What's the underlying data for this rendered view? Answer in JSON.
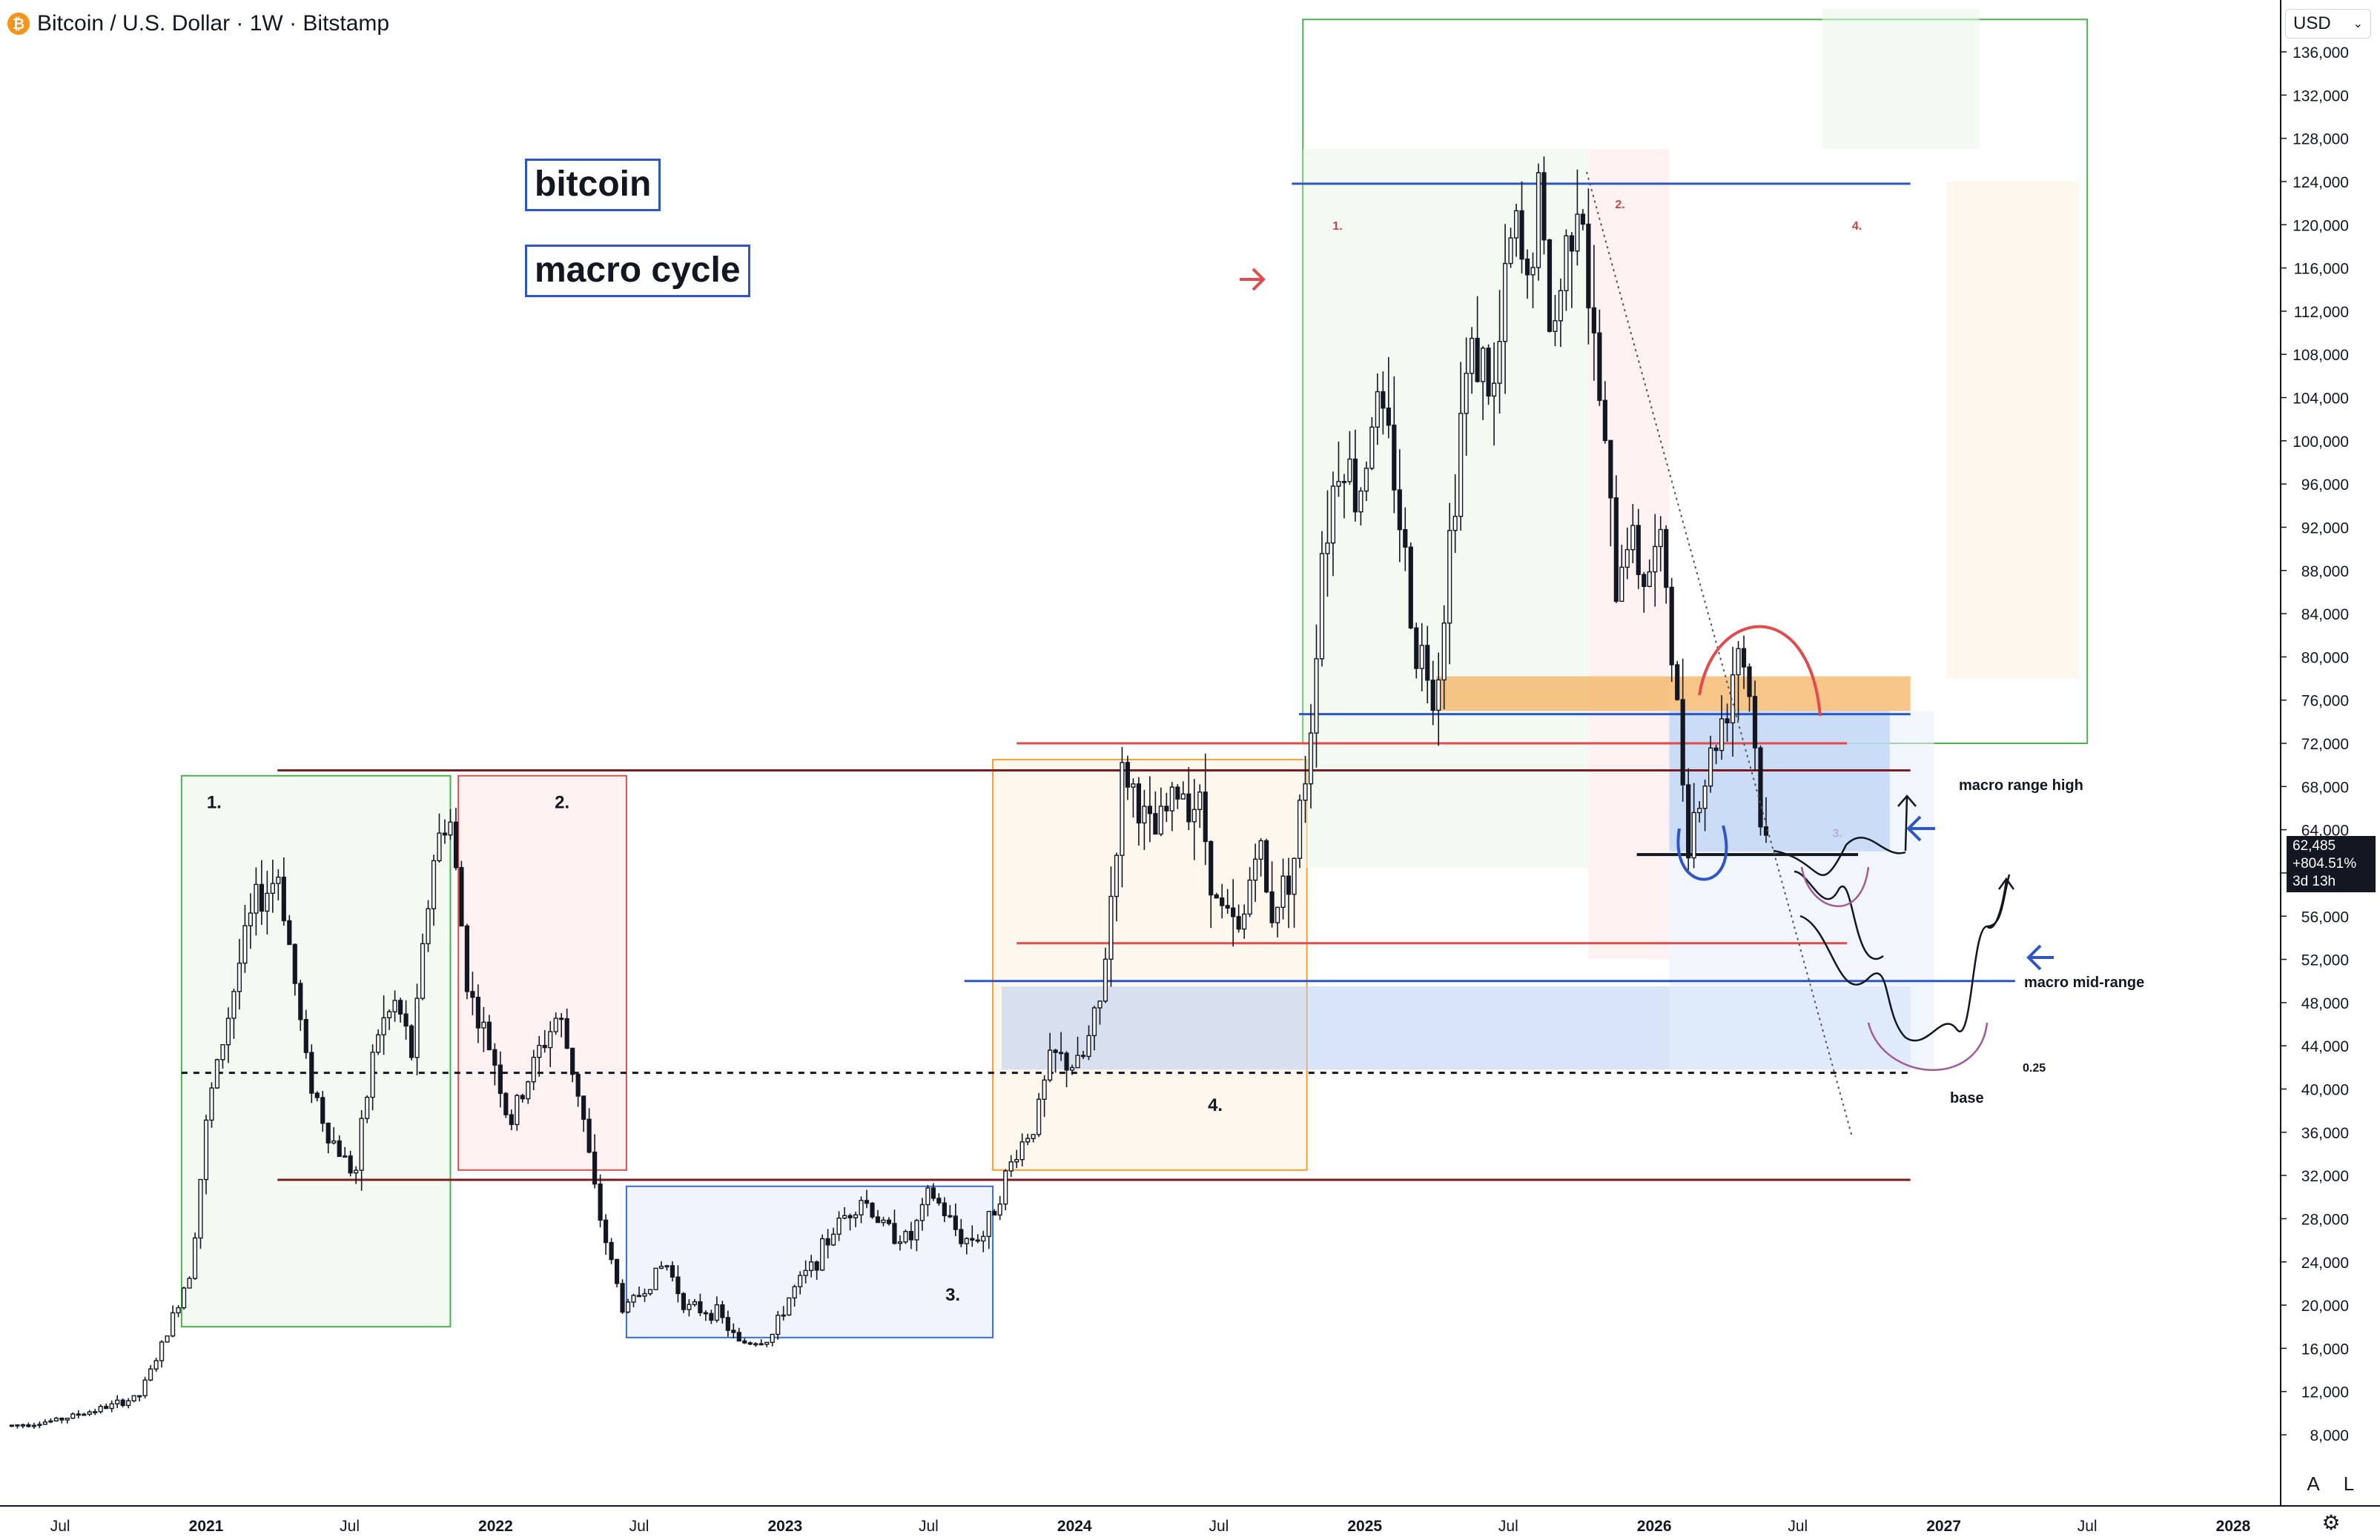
{
  "header": {
    "icon": "bitcoin-icon",
    "title": "Bitcoin / U.S. Dollar · 1W · Bitstamp"
  },
  "currency": {
    "label": "USD",
    "icon": "chevron-down-icon"
  },
  "annotations": {
    "title_box": "bitcoin",
    "subtitle_box": "macro cycle"
  },
  "price_badge": {
    "price": "62,485",
    "change": "+804.51%",
    "countdown": "3d 13h"
  },
  "scale_buttons": {
    "auto": "A",
    "log": "L",
    "settings_icon": "gear-icon"
  },
  "colors": {
    "candle": "#131722",
    "blue_line": "#2f56c3",
    "red_line": "#e04b4b",
    "dark_red_line": "#7b1e23",
    "orange_zone": "#f3b25f"
  },
  "chart_data": {
    "type": "candlestick",
    "symbol": "Bitcoin / U.S. Dollar",
    "interval": "1W",
    "exchange": "Bitstamp",
    "y_axis": {
      "scale": "linear",
      "range": [
        5000,
        138000
      ],
      "ticks": [
        "136,000",
        "132,000",
        "128,000",
        "124,000",
        "120,000",
        "116,000",
        "112,000",
        "108,000",
        "104,000",
        "100,000",
        "96,000",
        "92,000",
        "88,000",
        "84,000",
        "80,000",
        "76,000",
        "72,000",
        "68,000",
        "64,000",
        "60,000",
        "56,000",
        "52,000",
        "48,000",
        "44,000",
        "40,000",
        "36,000",
        "32,000",
        "28,000",
        "24,000",
        "20,000",
        "16,000",
        "12,000",
        "8,000"
      ]
    },
    "x_axis": {
      "ticks": [
        {
          "label": "Jul",
          "date": "2020-07-01"
        },
        {
          "label": "2021",
          "date": "2021-01-01"
        },
        {
          "label": "Jul",
          "date": "2021-07-01"
        },
        {
          "label": "2022",
          "date": "2022-01-01"
        },
        {
          "label": "Jul",
          "date": "2022-07-01"
        },
        {
          "label": "2023",
          "date": "2023-01-01"
        },
        {
          "label": "Jul",
          "date": "2023-07-01"
        },
        {
          "label": "2024",
          "date": "2024-01-01"
        },
        {
          "label": "Jul",
          "date": "2024-07-01"
        },
        {
          "label": "2025",
          "date": "2025-01-01"
        },
        {
          "label": "Jul",
          "date": "2025-07-01"
        },
        {
          "label": "2026",
          "date": "2026-01-01"
        },
        {
          "label": "Jul",
          "date": "2026-07-01"
        },
        {
          "label": "2027",
          "date": "2027-01-01"
        },
        {
          "label": "Jul",
          "date": "2027-07-01"
        },
        {
          "label": "2028",
          "date": "2028-01-01"
        }
      ]
    },
    "price_path": [
      [
        "2020-05-01",
        8800
      ],
      [
        "2020-07-01",
        9300
      ],
      [
        "2020-09-01",
        10500
      ],
      [
        "2020-10-15",
        11500
      ],
      [
        "2020-11-15",
        16500
      ],
      [
        "2020-12-20",
        23500
      ],
      [
        "2021-01-10",
        38000
      ],
      [
        "2021-02-20",
        52000
      ],
      [
        "2021-03-10",
        57000
      ],
      [
        "2021-04-10",
        60000
      ],
      [
        "2021-05-15",
        42000
      ],
      [
        "2021-06-10",
        36000
      ],
      [
        "2021-07-15",
        32000
      ],
      [
        "2021-08-10",
        45000
      ],
      [
        "2021-09-05",
        48000
      ],
      [
        "2021-09-25",
        43000
      ],
      [
        "2021-10-20",
        61000
      ],
      [
        "2021-11-10",
        66000
      ],
      [
        "2021-12-05",
        49000
      ],
      [
        "2022-01-10",
        42000
      ],
      [
        "2022-01-25",
        36500
      ],
      [
        "2022-03-01",
        43000
      ],
      [
        "2022-03-28",
        47000
      ],
      [
        "2022-04-25",
        39000
      ],
      [
        "2022-05-15",
        29500
      ],
      [
        "2022-06-18",
        19500
      ],
      [
        "2022-07-15",
        21500
      ],
      [
        "2022-08-10",
        24000
      ],
      [
        "2022-09-05",
        19800
      ],
      [
        "2022-10-15",
        19300
      ],
      [
        "2022-11-10",
        16500
      ],
      [
        "2022-12-20",
        16800
      ],
      [
        "2023-01-15",
        21000
      ],
      [
        "2023-02-15",
        24000
      ],
      [
        "2023-03-15",
        27500
      ],
      [
        "2023-04-15",
        30000
      ],
      [
        "2023-05-15",
        27000
      ],
      [
        "2023-06-15",
        26000
      ],
      [
        "2023-07-10",
        30500
      ],
      [
        "2023-08-20",
        26000
      ],
      [
        "2023-09-15",
        26500
      ],
      [
        "2023-10-25",
        34000
      ],
      [
        "2023-11-20",
        37000
      ],
      [
        "2023-12-10",
        43000
      ],
      [
        "2024-01-15",
        42000
      ],
      [
        "2024-02-10",
        48000
      ],
      [
        "2024-03-10",
        70000
      ],
      [
        "2024-04-15",
        63000
      ],
      [
        "2024-05-20",
        68000
      ],
      [
        "2024-06-15",
        66000
      ],
      [
        "2024-07-05",
        57000
      ],
      [
        "2024-08-05",
        54000
      ],
      [
        "2024-08-25",
        64000
      ],
      [
        "2024-09-10",
        56000
      ],
      [
        "2024-10-10",
        61000
      ],
      [
        "2024-10-30",
        72000
      ],
      [
        "2024-11-15",
        90000
      ],
      [
        "2024-12-10",
        100000
      ],
      [
        "2024-12-30",
        94000
      ],
      [
        "2025-01-20",
        104000
      ],
      [
        "2025-02-15",
        97000
      ],
      [
        "2025-03-10",
        82000
      ],
      [
        "2025-04-08",
        77000
      ],
      [
        "2025-05-10",
        103000
      ],
      [
        "2025-05-25",
        109000
      ],
      [
        "2025-06-20",
        104000
      ],
      [
        "2025-07-14",
        120000
      ],
      [
        "2025-08-01",
        114000
      ],
      [
        "2025-08-14",
        123000
      ],
      [
        "2025-09-01",
        109000
      ],
      [
        "2025-10-06",
        126000
      ],
      [
        "2025-10-20",
        110000
      ],
      [
        "2025-11-05",
        101000
      ],
      [
        "2025-11-20",
        86000
      ],
      [
        "2025-12-05",
        92000
      ],
      [
        "2025-12-25",
        87500
      ],
      [
        "2026-01-20",
        90000
      ],
      [
        "2026-02-05",
        75000
      ],
      [
        "2026-02-20",
        64000
      ],
      [
        "2026-03-10",
        68000
      ],
      [
        "2026-03-25",
        72000
      ],
      [
        "2026-04-10",
        76000
      ],
      [
        "2026-04-25",
        82000
      ],
      [
        "2026-05-10",
        76000
      ],
      [
        "2026-05-25",
        62485
      ]
    ],
    "horizontal_levels": [
      {
        "price": 123800,
        "color": "blue",
        "from": "2024-10-01",
        "to": "2026-11-20"
      },
      {
        "price": 74700,
        "color": "blue",
        "from": "2024-10-10",
        "to": "2026-11-20"
      },
      {
        "price": 72000,
        "color": "red",
        "from": "2023-10-20",
        "to": "2026-09-01"
      },
      {
        "price": 69500,
        "color": "dark-red",
        "from": "2021-04-01",
        "to": "2026-11-20"
      },
      {
        "price": 53500,
        "color": "red",
        "from": "2023-10-20",
        "to": "2026-09-01"
      },
      {
        "price": 50000,
        "color": "blue",
        "from": "2023-08-15",
        "to": "2027-04-01"
      },
      {
        "price": 31600,
        "color": "dark-red",
        "from": "2021-04-01",
        "to": "2026-11-20"
      },
      {
        "price": 61700,
        "color": "black",
        "from": "2025-12-10",
        "to": "2026-09-15"
      },
      {
        "price": 41500,
        "color": "dashed",
        "from": "2020-12-01",
        "to": "2026-11-20"
      }
    ],
    "zones": [
      {
        "from": "2020-12-01",
        "to": "2021-11-05",
        "low": 18000,
        "high": 69000,
        "color": "green",
        "label": "1."
      },
      {
        "from": "2021-11-15",
        "to": "2022-06-15",
        "low": 32500,
        "high": 69000,
        "color": "red",
        "label": "2."
      },
      {
        "from": "2022-06-15",
        "to": "2023-09-20",
        "low": 17000,
        "high": 31000,
        "color": "blue",
        "label": "3."
      },
      {
        "from": "2023-09-20",
        "to": "2024-10-20",
        "low": 32500,
        "high": 70500,
        "color": "orange",
        "label": "4."
      },
      {
        "from": "2024-10-15",
        "to": "2027-07-01",
        "low": 72000,
        "high": 139000,
        "color": "green-outline",
        "label": ""
      },
      {
        "from": "2024-10-15",
        "to": "2025-10-10",
        "low": 60500,
        "high": 127000,
        "color": "green",
        "label": "1."
      },
      {
        "from": "2025-10-10",
        "to": "2026-01-20",
        "low": 52000,
        "high": 127000,
        "color": "red",
        "label": "2."
      },
      {
        "from": "2026-01-20",
        "to": "2026-10-25",
        "low": 62000,
        "high": 75000,
        "color": "blue-solid",
        "label": "3."
      },
      {
        "from": "2026-08-01",
        "to": "2027-02-15",
        "low": 127000,
        "high": 140000,
        "color": "green",
        "label": "4."
      },
      {
        "from": "2027-01-05",
        "to": "2027-06-20",
        "low": 78000,
        "high": 124000,
        "color": "orange",
        "label": ""
      },
      {
        "from": "2025-04-01",
        "to": "2026-11-20",
        "low": 75000,
        "high": 78200,
        "color": "orange-solid",
        "label": ""
      },
      {
        "from": "2023-10-01",
        "to": "2026-11-20",
        "low": 41800,
        "high": 49500,
        "color": "blue-soft",
        "label": ""
      },
      {
        "from": "2026-01-20",
        "to": "2026-12-20",
        "low": 41800,
        "high": 75000,
        "color": "blue-faint",
        "label": ""
      }
    ],
    "annotations": [
      "macro range high",
      "macro mid-range",
      "base",
      "0.25"
    ],
    "last_price": 62485,
    "last_change": "+804.51%",
    "bar_close_countdown": "3d 13h"
  }
}
